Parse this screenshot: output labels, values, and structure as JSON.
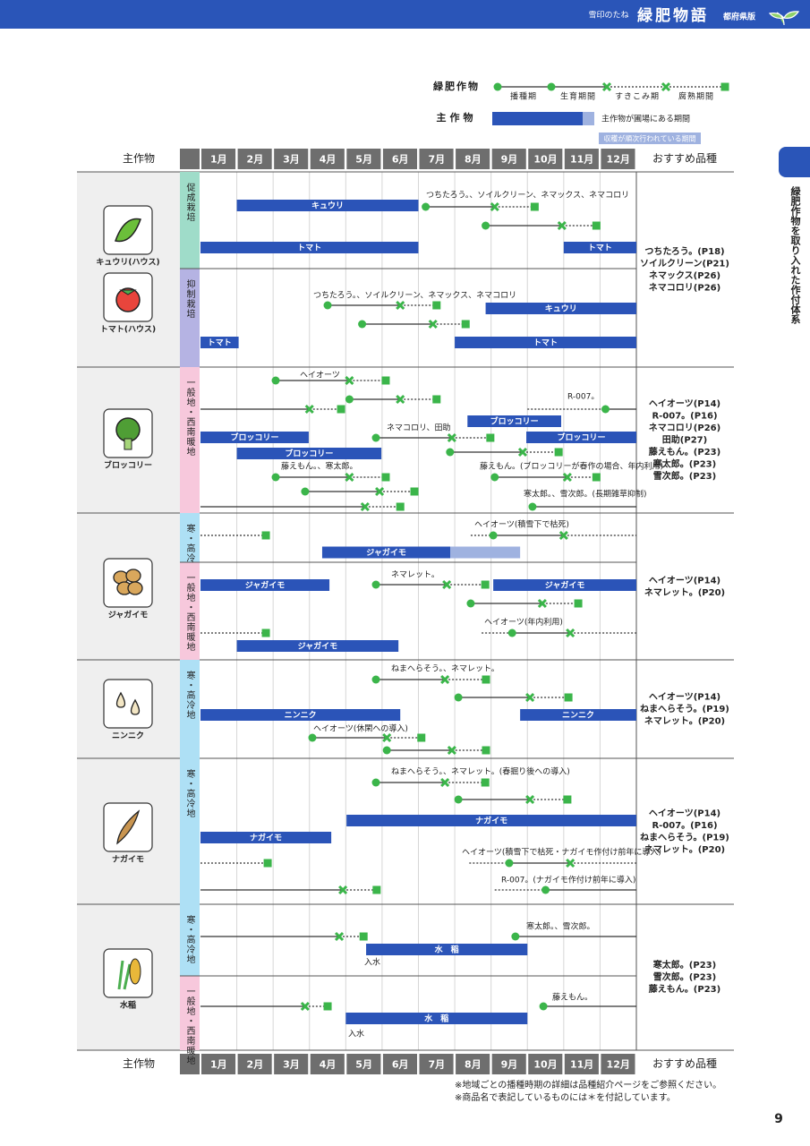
{
  "header": {
    "brand": "雪印のたね",
    "title": "緑肥物語",
    "edition": "都府県版"
  },
  "side_tab": "緑肥作物を取り入れた作付体系",
  "legend": {
    "green_manure": "緑肥作物",
    "stages": [
      "播種期",
      "生育期間",
      "すきこみ期",
      "腐熟期間"
    ],
    "main_crop": "主作物",
    "main_crop_note": "主作物が圃場にある期間",
    "harvest_note": "収穫が順次行われている期間"
  },
  "table": {
    "col_crop": "主作物",
    "col_varieties": "おすすめ品種",
    "months": [
      "1月",
      "2月",
      "3月",
      "4月",
      "5月",
      "6月",
      "7月",
      "8月",
      "9月",
      "10月",
      "11月",
      "12月"
    ],
    "xlim": [
      1,
      13
    ],
    "groups": [
      {
        "crops": [
          "キュウリ(ハウス)",
          "トマト(ハウス)"
        ],
        "varieties": [
          "つちたろう。(P18)",
          "ソイルクリーン(P21)",
          "ネマックス(P26)",
          "ネマコロリ(P26)"
        ],
        "rows": [
          {
            "label": "促成栽培",
            "color": "#9fdcc9",
            "items": [
              {
                "kind": "note",
                "text": "つちたろう。、ソイルクリーン、ネマックス、ネマコロリ"
              },
              {
                "kind": "bar",
                "label": "キュウリ",
                "from": 2,
                "to": 7
              },
              {
                "kind": "gm",
                "sow": 7.2,
                "plow": 9.1,
                "end": 10.2
              },
              {
                "kind": "gm",
                "sow": 8.85,
                "plow": 10.95,
                "end": 11.9
              },
              {
                "kind": "bar",
                "label": "トマト",
                "from": 1,
                "to": 7
              },
              {
                "kind": "bar",
                "label": "トマト",
                "from": 11,
                "to": 13
              }
            ]
          },
          {
            "label": "抑制栽培",
            "color": "#b5b3e3",
            "items": [
              {
                "kind": "note",
                "text": "つちたろう。、ソイルクリーン、ネマックス、ネマコロリ"
              },
              {
                "kind": "gm",
                "sow": 4.5,
                "plow": 6.5,
                "end": 7.5
              },
              {
                "kind": "gm",
                "sow": 5.45,
                "plow": 7.4,
                "end": 8.3
              },
              {
                "kind": "bar",
                "label": "キュウリ",
                "from": 8.85,
                "to": 13
              },
              {
                "kind": "bar",
                "label": "トマト",
                "from": 1,
                "to": 2.05
              },
              {
                "kind": "bar",
                "label": "トマト",
                "from": 8,
                "to": 13
              }
            ]
          }
        ]
      },
      {
        "crops": [
          "ブロッコリー"
        ],
        "varieties": [
          "ヘイオーツ(P14)",
          "R-007。(P16)",
          "ネマコロリ(P26)",
          "田助(P27)",
          "藤えもん。(P23)",
          "寒太郎。(P23)",
          "雪次郎。(P23)"
        ],
        "rows": [
          {
            "label": "一般地・西南暖地",
            "color": "#f7c8dc",
            "items": [
              {
                "kind": "note",
                "text": "ヘイオーツ"
              },
              {
                "kind": "gm",
                "sow": 3.07,
                "plow": 5.1,
                "end": 6.1
              },
              {
                "kind": "gm",
                "sow": 5.1,
                "plow": 6.5,
                "end": 7.5
              },
              {
                "kind": "gm",
                "sow": null,
                "plow": 4.0,
                "end": 4.87
              },
              {
                "kind": "note",
                "text": "R-007。"
              },
              {
                "kind": "gm",
                "pre": 10.0,
                "sow": 12.15,
                "plow": null,
                "end": null
              },
              {
                "kind": "bar",
                "label": "ブロッコリー",
                "from": 8.35,
                "to": 10.93
              },
              {
                "kind": "note",
                "text": "ネマコロリ、田助"
              },
              {
                "kind": "bar",
                "label": "ブロッコリー",
                "from": 1,
                "to": 3.98
              },
              {
                "kind": "gm",
                "sow": 5.83,
                "plow": 7.92,
                "end": 8.98
              },
              {
                "kind": "bar",
                "label": "ブロッコリー",
                "from": 9.97,
                "to": 13
              },
              {
                "kind": "bar",
                "label": "ブロッコリー",
                "from": 2,
                "to": 5.98
              },
              {
                "kind": "gm",
                "sow": 7.87,
                "plow": 9.87,
                "end": 10.86
              },
              {
                "kind": "note",
                "text": "藤えもん。、寒太郎。"
              },
              {
                "kind": "note",
                "text": "藤えもん。(ブロッコリーが春作の場合、年内利用)"
              },
              {
                "kind": "gm",
                "sow": 3.07,
                "plow": 5.1,
                "end": 6.1
              },
              {
                "kind": "gm",
                "sow": 9.1,
                "plow": 11.1,
                "end": 11.9
              },
              {
                "kind": "gm",
                "sow": 3.88,
                "plow": 5.93,
                "end": 6.89
              },
              {
                "kind": "note",
                "text": "寒太郎。、雪次郎。(長期雑草抑制)"
              },
              {
                "kind": "gm",
                "sow": null,
                "plow": 5.53,
                "end": 6.5
              },
              {
                "kind": "gm",
                "sow": 10.14,
                "plow": null,
                "end": null
              }
            ]
          }
        ]
      },
      {
        "crops": [
          "ジャガイモ"
        ],
        "varieties": [
          "ヘイオーツ(P14)",
          "ネマレット。(P20)"
        ],
        "rows": [
          {
            "label": "寒・高冷地",
            "color": "#aee0f5",
            "items": [
              {
                "kind": "dotted",
                "end": 2.8
              },
              {
                "kind": "note",
                "text": "ヘイオーツ(積雪下で枯死)"
              },
              {
                "kind": "gm",
                "pre": 8.44,
                "sow": 9.06,
                "plow": 11.0,
                "end": null
              },
              {
                "kind": "bar",
                "label": "ジャガイモ",
                "from": 4.35,
                "to": 7.88,
                "light_to": 9.8
              }
            ]
          },
          {
            "label": "一般地・西南暖地",
            "color": "#f7c8dc",
            "items": [
              {
                "kind": "bar",
                "label": "ジャガイモ",
                "from": 1,
                "to": 4.55
              },
              {
                "kind": "note",
                "text": "ネマレット。"
              },
              {
                "kind": "gm",
                "sow": 5.83,
                "plow": 7.78,
                "end": 8.84
              },
              {
                "kind": "bar",
                "label": "ジャガイモ",
                "from": 9.06,
                "to": 13
              },
              {
                "kind": "gm",
                "sow": 8.44,
                "plow": 10.41,
                "end": 11.4
              },
              {
                "kind": "note",
                "text": "ヘイオーツ(年内利用)"
              },
              {
                "kind": "dotted",
                "end": 2.8
              },
              {
                "kind": "gm",
                "pre": 8.74,
                "sow": 9.58,
                "plow": 11.18,
                "end": null
              },
              {
                "kind": "bar",
                "label": "ジャガイモ",
                "from": 2,
                "to": 6.45
              }
            ]
          }
        ]
      },
      {
        "crops": [
          "ニンニク"
        ],
        "varieties": [
          "ヘイオーツ(P14)",
          "ねまへらそう。(P19)",
          "ネマレット。(P20)"
        ],
        "rows": [
          {
            "label": "寒・高冷地",
            "color": "#aee0f5",
            "items": [
              {
                "kind": "note",
                "text": "ねまへらそう。、ネマレット。"
              },
              {
                "kind": "gm",
                "sow": 5.83,
                "plow": 7.73,
                "end": 8.86
              },
              {
                "kind": "gm",
                "sow": 8.1,
                "plow": 10.07,
                "end": 11.13
              },
              {
                "kind": "bar",
                "label": "ニンニク",
                "from": 1,
                "to": 6.5
              },
              {
                "kind": "bar",
                "label": "ニンニク",
                "from": 9.8,
                "to": 13
              },
              {
                "kind": "note",
                "text": "ヘイオーツ(休閑への導入)"
              },
              {
                "kind": "gm",
                "sow": 4.08,
                "plow": 6.13,
                "end": 7.08
              },
              {
                "kind": "gm",
                "sow": 6.13,
                "plow": 7.92,
                "end": 8.86
              }
            ]
          }
        ]
      },
      {
        "crops": [
          "ナガイモ"
        ],
        "varieties": [
          "ヘイオーツ(P14)",
          "R-007。(P16)",
          "ねまへらそう。(P19)",
          "ネマレット。(P20)"
        ],
        "rows": [
          {
            "label": "寒・高冷地",
            "color": "#aee0f5",
            "items": [
              {
                "kind": "note",
                "text": "ねまへらそう。、ネマレット。(春掘り後への導入)"
              },
              {
                "kind": "gm",
                "sow": 5.83,
                "plow": 7.73,
                "end": 8.84
              },
              {
                "kind": "gm",
                "sow": 8.1,
                "plow": 10.07,
                "end": 11.1
              },
              {
                "kind": "bar",
                "label": "ナガイモ",
                "from": 5.02,
                "to": 13
              },
              {
                "kind": "bar",
                "label": "ナガイモ",
                "from": 1,
                "to": 4.6
              },
              {
                "kind": "note",
                "text": "ヘイオーツ(積雪下で枯死・ナガイモ作付け前年に導入)"
              },
              {
                "kind": "dotted",
                "end": 2.85
              },
              {
                "kind": "gm",
                "pre": 8.4,
                "sow": 9.5,
                "plow": 11.18,
                "end": null
              },
              {
                "kind": "note",
                "text": "R-007。(ナガイモ作付け前年に導入)"
              },
              {
                "kind": "gm",
                "sow": null,
                "plow": 4.92,
                "end": 5.85
              },
              {
                "kind": "gm",
                "pre": 9.1,
                "sow": 10.5,
                "plow": null,
                "end": null
              }
            ]
          }
        ]
      },
      {
        "crops": [
          "水稲"
        ],
        "varieties": [
          "寒太郎。(P23)",
          "雪次郎。(P23)",
          "藤えもん。(P23)"
        ],
        "rows": [
          {
            "label": "寒・高冷地",
            "color": "#aee0f5",
            "items": [
              {
                "kind": "gm",
                "sow": null,
                "plow": 4.82,
                "end": 5.49
              },
              {
                "kind": "note",
                "text": "寒太郎。、雪次郎。"
              },
              {
                "kind": "gm",
                "sow": 9.67,
                "plow": null,
                "end": null
              },
              {
                "kind": "bar",
                "label": "水　稲",
                "from": 5.56,
                "to": 10.0
              },
              {
                "kind": "note",
                "text": "入水"
              }
            ]
          },
          {
            "label": "一般地・西南暖地",
            "color": "#f7c8dc",
            "items": [
              {
                "kind": "gm",
                "sow": null,
                "plow": 3.88,
                "end": 4.5
              },
              {
                "kind": "note",
                "text": "藤えもん。"
              },
              {
                "kind": "gm",
                "sow": 10.44,
                "plow": null,
                "end": null
              },
              {
                "kind": "bar",
                "label": "水　稲",
                "from": 5.0,
                "to": 10.0
              },
              {
                "kind": "note",
                "text": "入水"
              }
            ]
          }
        ]
      }
    ]
  },
  "footnotes": [
    "※地域ごとの播種時期の詳細は品種紹介ページをご参照ください。",
    "※商品名で表記しているものには＊を付記しています。"
  ],
  "page_number": "9"
}
